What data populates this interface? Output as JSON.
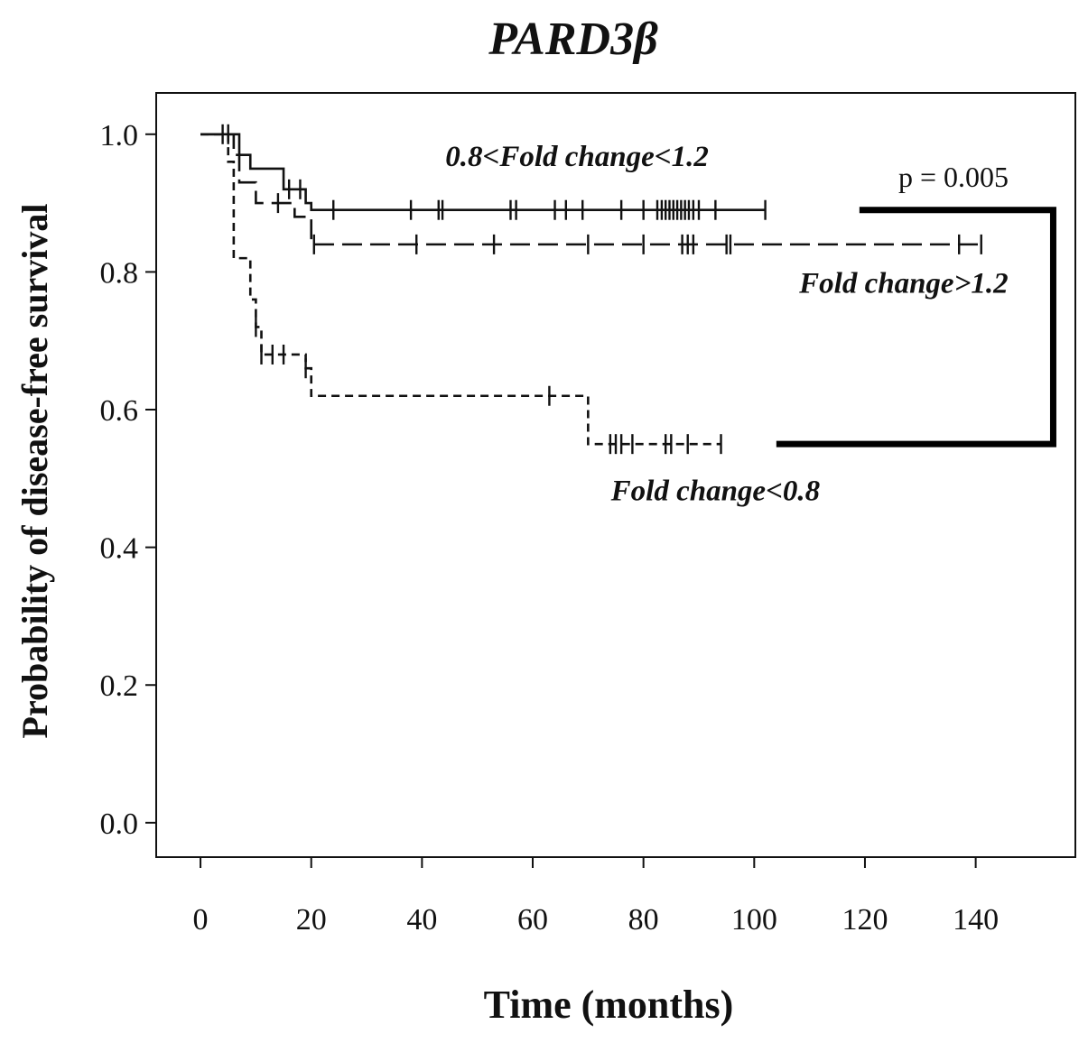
{
  "chart_data": {
    "type": "line",
    "subtype": "kaplan-meier",
    "title": "PARD3β",
    "xlabel": "Time (months)",
    "ylabel": "Probability of disease-free survival",
    "xlim": [
      -8,
      158
    ],
    "ylim": [
      -0.05,
      1.06
    ],
    "x_ticks": [
      0,
      20,
      40,
      60,
      80,
      100,
      120,
      140
    ],
    "x_tick_labels": [
      "0",
      "20",
      "40",
      "60",
      "80",
      "100",
      "120",
      "140"
    ],
    "y_ticks": [
      0.0,
      0.2,
      0.4,
      0.6,
      0.8,
      1.0
    ],
    "y_tick_labels": [
      "0.0",
      "0.2",
      "0.4",
      "0.6",
      "0.8",
      "1.0"
    ],
    "grid": false,
    "series": [
      {
        "label": "0.8<Fold change<1.2",
        "style": "solid",
        "color": "#111111",
        "steps": [
          [
            0,
            1.0
          ],
          [
            7,
            0.97
          ],
          [
            9,
            0.95
          ],
          [
            15,
            0.92
          ],
          [
            19,
            0.9
          ],
          [
            20,
            0.89
          ],
          [
            102,
            0.89
          ]
        ],
        "censored": [
          4,
          16,
          18,
          24,
          38,
          43,
          43.7,
          56,
          57,
          64,
          66,
          69,
          76,
          80,
          82.5,
          83.3,
          84,
          84.7,
          85.4,
          86.1,
          86.8,
          87.5,
          88.2,
          89,
          90,
          93,
          102
        ]
      },
      {
        "label": "Fold change>1.2",
        "style": "dashed",
        "color": "#111111",
        "steps": [
          [
            0,
            1.0
          ],
          [
            6,
            0.97
          ],
          [
            7,
            0.93
          ],
          [
            10,
            0.9
          ],
          [
            17,
            0.88
          ],
          [
            20,
            0.84
          ],
          [
            141,
            0.84
          ]
        ],
        "censored": [
          5,
          14,
          20.5,
          39,
          53,
          70,
          80,
          87,
          88,
          89,
          95,
          95.7,
          137,
          141
        ]
      },
      {
        "label": "Fold change<0.8",
        "style": "dashed",
        "color": "#111111",
        "steps": [
          [
            0,
            1.0
          ],
          [
            5,
            0.96
          ],
          [
            6,
            0.82
          ],
          [
            9,
            0.76
          ],
          [
            10,
            0.72
          ],
          [
            11,
            0.68
          ],
          [
            19,
            0.66
          ],
          [
            20,
            0.62
          ],
          [
            70,
            0.55
          ],
          [
            94,
            0.55
          ]
        ],
        "censored": [
          10,
          11,
          13,
          15,
          19,
          63,
          74,
          75,
          76,
          78,
          84,
          85,
          88,
          94
        ]
      }
    ],
    "annotations": [
      {
        "text": "0.8<Fold change<1.2",
        "x": 68,
        "y": 0.954,
        "series": 0
      },
      {
        "text": "Fold change>1.2",
        "x": 127,
        "y": 0.77,
        "series": 1
      },
      {
        "text": "Fold change<0.8",
        "x": 93,
        "y": 0.468,
        "series": 2
      }
    ],
    "comparison": {
      "p_value_text": "p = 0.005",
      "bracket_x": 154,
      "bracket_top_y": 0.89,
      "bracket_bottom_y": 0.55,
      "bracket_top_start": 119,
      "bracket_bottom_start": 104
    }
  }
}
